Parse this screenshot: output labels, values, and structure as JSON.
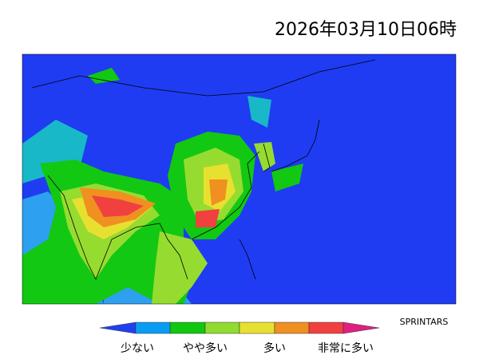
{
  "header": {
    "title": "2026年03月10日06時"
  },
  "legend": {
    "labels": [
      "少ない",
      "やや多い",
      "多い",
      "非常に多い"
    ]
  },
  "credit": "SPRINTARS"
}
